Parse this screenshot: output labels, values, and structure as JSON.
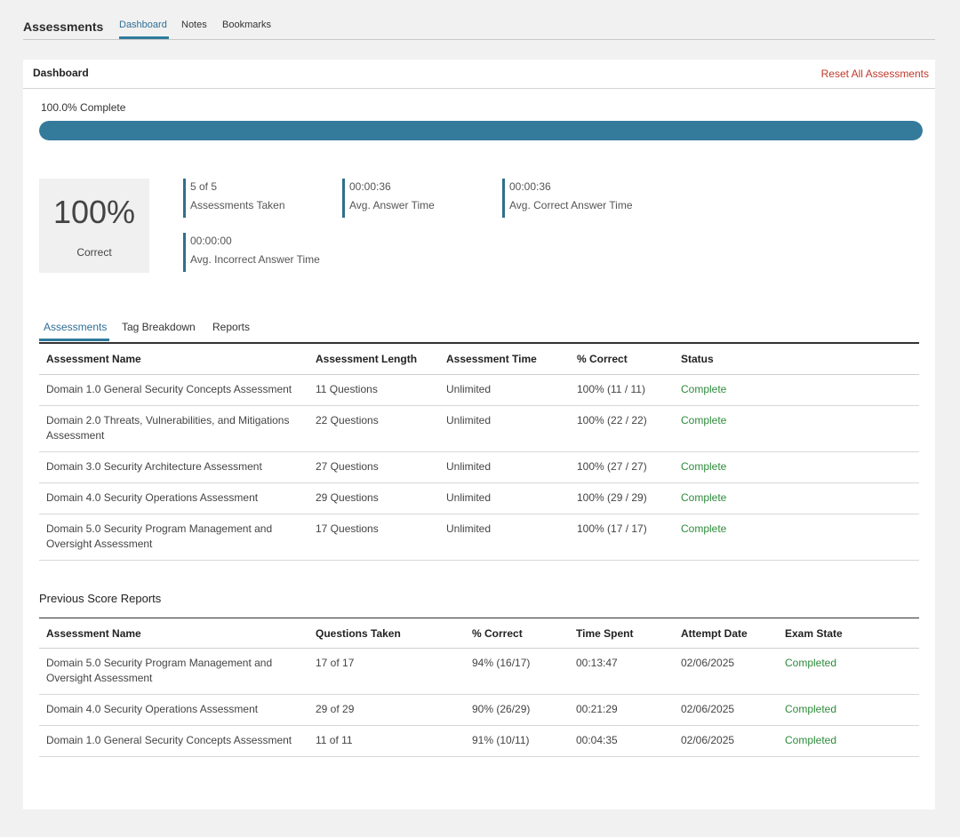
{
  "topnav": {
    "title": "Assessments",
    "tabs": [
      {
        "label": "Dashboard"
      },
      {
        "label": "Notes"
      },
      {
        "label": "Bookmarks"
      }
    ]
  },
  "card": {
    "title": "Dashboard",
    "reset_label": "Reset All Assessments"
  },
  "progress": {
    "label": "100.0% Complete",
    "percent": 100
  },
  "score": {
    "value": "100%",
    "label": "Correct"
  },
  "stats": [
    {
      "value": "5 of 5",
      "label": "Assessments Taken"
    },
    {
      "value": "00:00:36",
      "label": "Avg. Answer Time"
    },
    {
      "value": "00:00:36",
      "label": "Avg. Correct Answer Time"
    },
    {
      "value": "00:00:00",
      "label": "Avg. Incorrect Answer Time"
    }
  ],
  "subtabs": [
    {
      "label": "Assessments"
    },
    {
      "label": "Tag Breakdown"
    },
    {
      "label": "Reports"
    }
  ],
  "assessments_table": {
    "headers": [
      "Assessment Name",
      "Assessment Length",
      "Assessment Time",
      "% Correct",
      "Status"
    ],
    "rows": [
      [
        "Domain 1.0 General Security Concepts Assessment",
        "11 Questions",
        "Unlimited",
        "100% (11 / 11)",
        "Complete"
      ],
      [
        "Domain 2.0 Threats, Vulnerabilities, and Mitigations Assessment",
        "22 Questions",
        "Unlimited",
        "100% (22 / 22)",
        "Complete"
      ],
      [
        "Domain 3.0 Security Architecture Assessment",
        "27 Questions",
        "Unlimited",
        "100% (27 / 27)",
        "Complete"
      ],
      [
        "Domain 4.0 Security Operations Assessment",
        "29 Questions",
        "Unlimited",
        "100% (29 / 29)",
        "Complete"
      ],
      [
        "Domain 5.0 Security Program Management and Oversight Assessment",
        "17 Questions",
        "Unlimited",
        "100% (17 / 17)",
        "Complete"
      ]
    ]
  },
  "reports": {
    "title": "Previous Score Reports",
    "headers": [
      "Assessment Name",
      "Questions Taken",
      "% Correct",
      "Time Spent",
      "Attempt Date",
      "Exam State"
    ],
    "rows": [
      [
        "Domain 5.0 Security Program Management and Oversight Assessment",
        "17 of 17",
        "94% (16/17)",
        "00:13:47",
        "02/06/2025",
        "Completed"
      ],
      [
        "Domain 4.0 Security Operations Assessment",
        "29 of 29",
        "90% (26/29)",
        "00:21:29",
        "02/06/2025",
        "Completed"
      ],
      [
        "Domain 1.0 General Security Concepts Assessment",
        "11 of 11",
        "91% (10/11)",
        "00:04:35",
        "02/06/2025",
        "Completed"
      ]
    ]
  },
  "colors": {
    "accent": "#347b9b",
    "status_green": "#2e8b3b",
    "reset_red": "#c0392b"
  }
}
